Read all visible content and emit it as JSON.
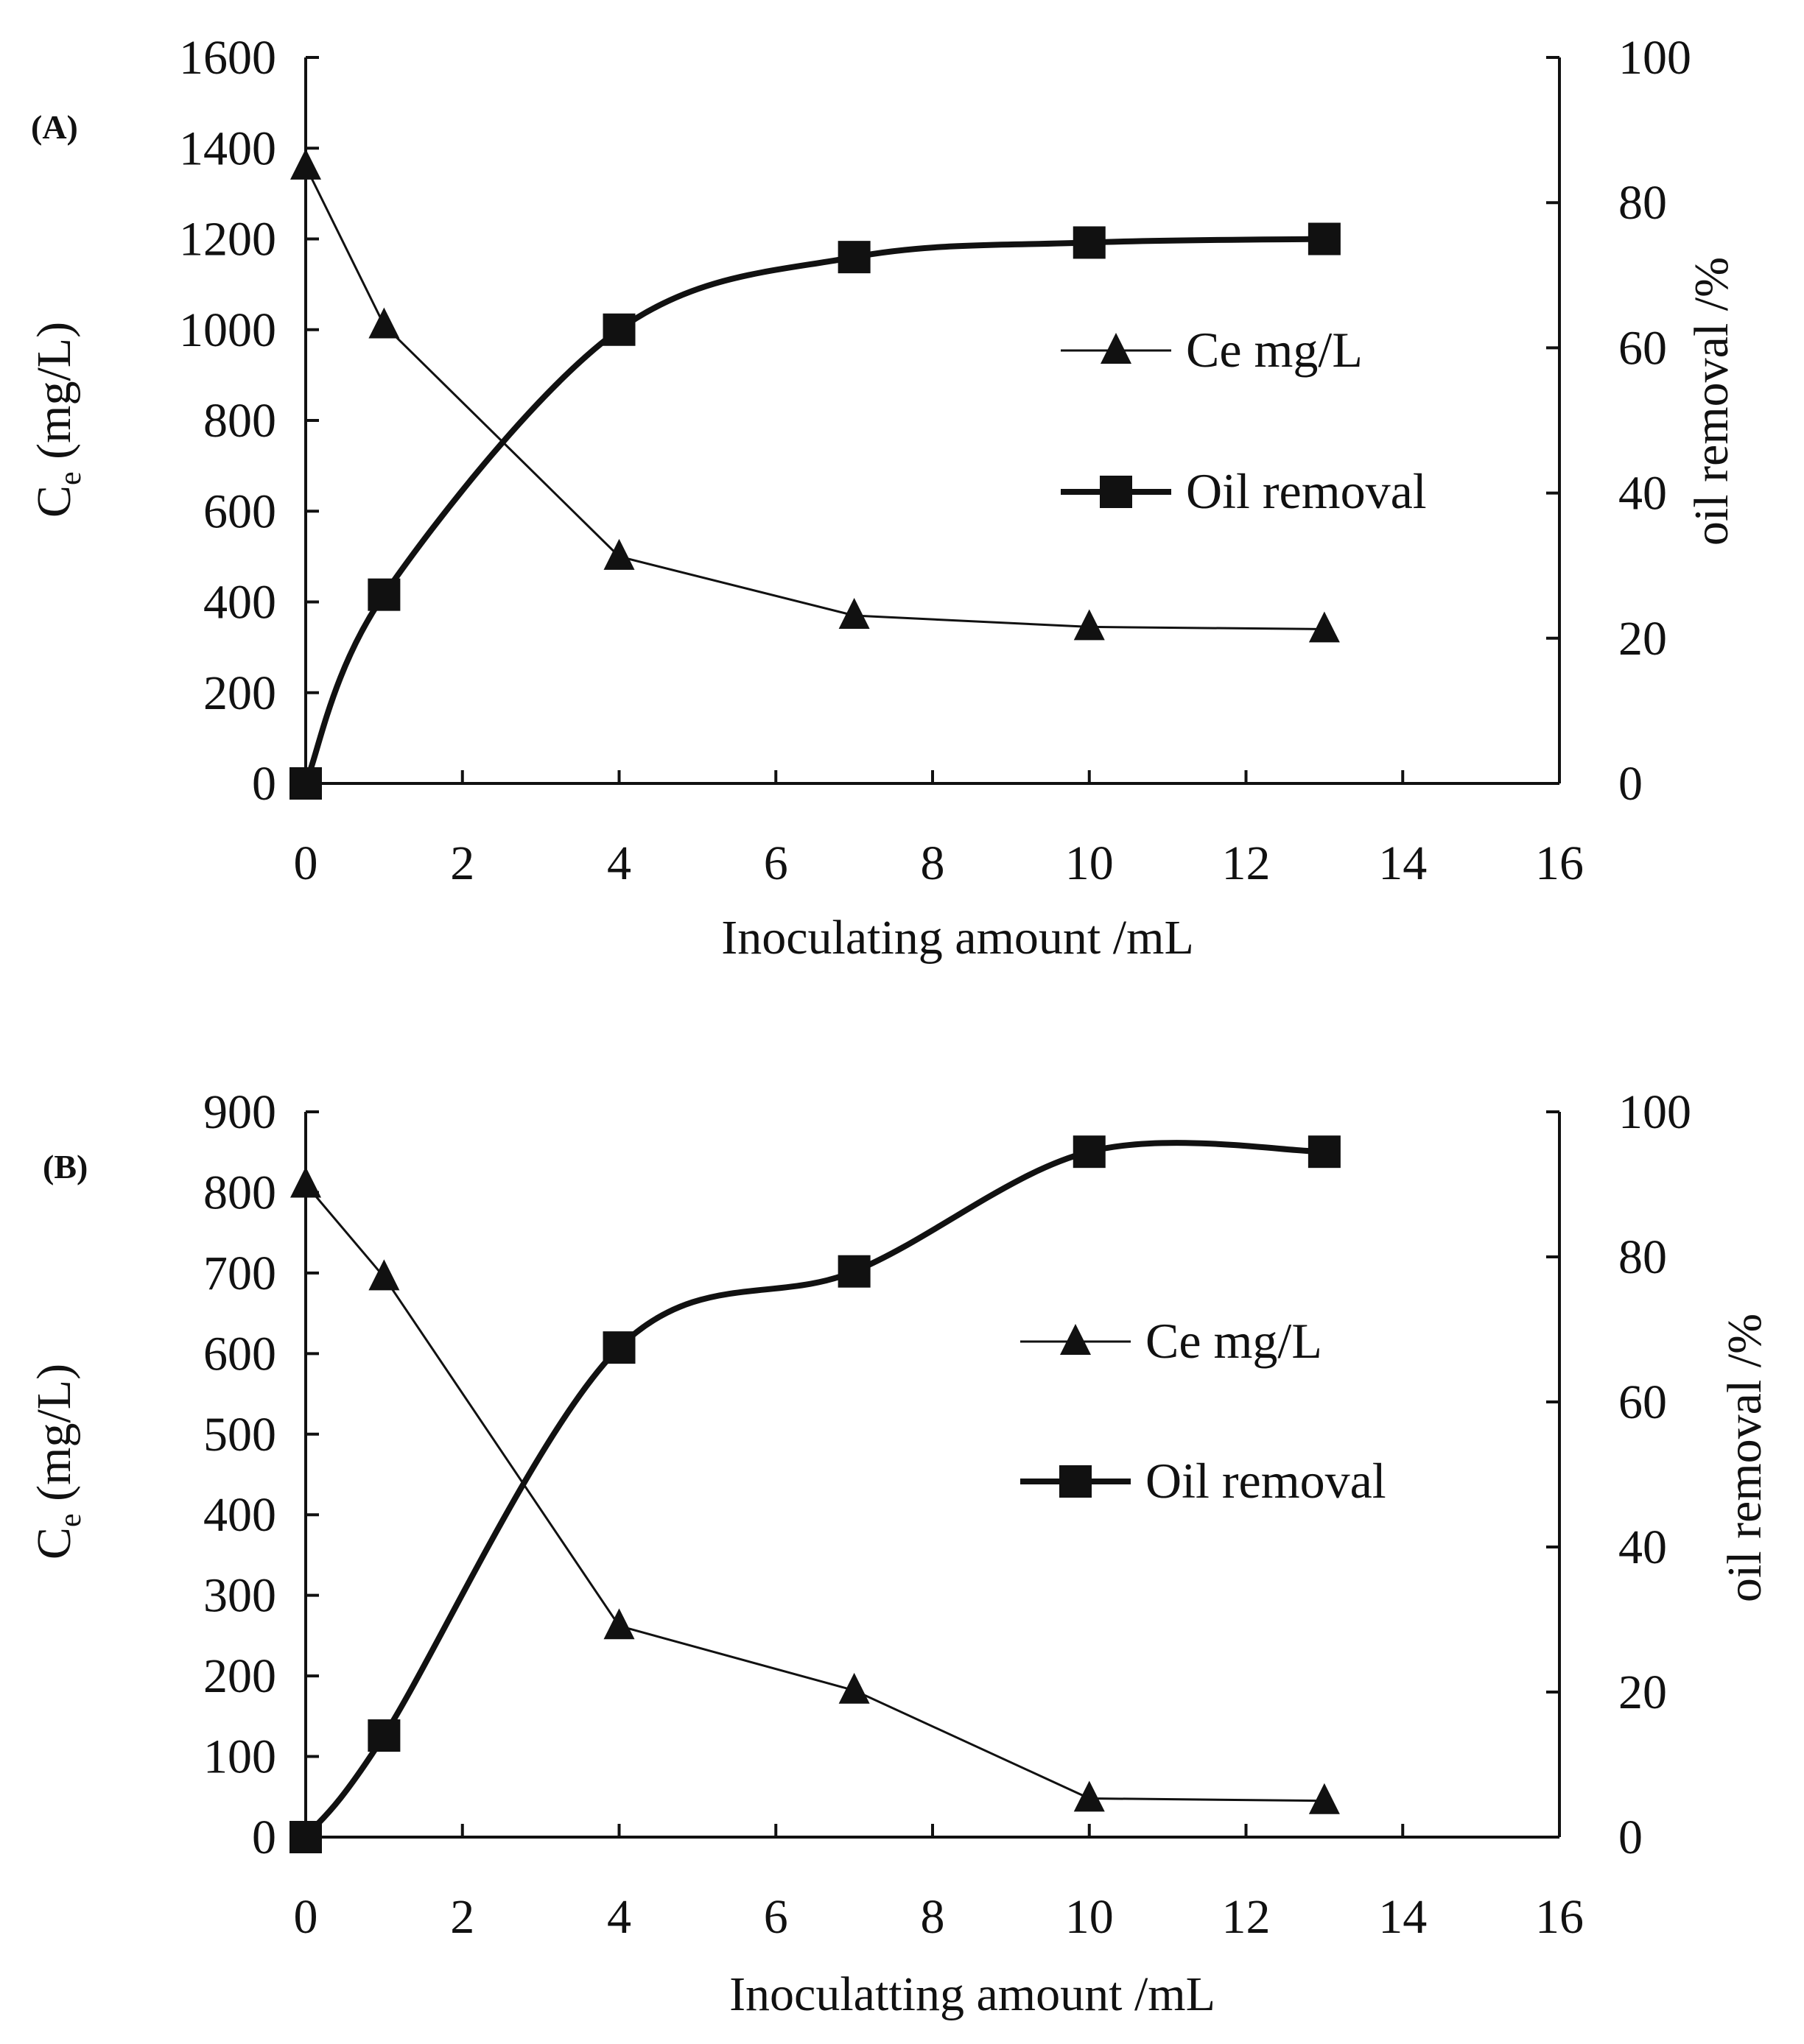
{
  "chart_data": [
    {
      "type": "line",
      "panel_label": "(A)",
      "xlabel": "Inoculating amount   /mL",
      "ylabel": "C",
      "ylabel_sub": "e",
      "ylabel_unit": "  (mg/L)",
      "y2label": "oil removal /%",
      "xlim": [
        0,
        16
      ],
      "ylim": [
        0,
        1600
      ],
      "y2lim": [
        0,
        100
      ],
      "x_ticks": [
        "0",
        "2",
        "4",
        "6",
        "8",
        "10",
        "12",
        "14",
        "16"
      ],
      "y_ticks": [
        "0",
        "200",
        "400",
        "600",
        "800",
        "1000",
        "1200",
        "1400",
        "1600"
      ],
      "y2_ticks": [
        "0",
        "20",
        "40",
        "60",
        "80",
        "100"
      ],
      "legend_position": "center-right",
      "series": [
        {
          "name": "Ce mg/L",
          "axis": "left",
          "marker": "triangle",
          "x": [
            0,
            1,
            4,
            7,
            10,
            13
          ],
          "values": [
            1360,
            1010,
            500,
            370,
            345,
            340
          ]
        },
        {
          "name": "Oil removal",
          "axis": "right",
          "marker": "square",
          "smooth": true,
          "x": [
            0,
            1,
            4,
            7,
            10,
            13
          ],
          "values": [
            0,
            26,
            62.5,
            72.5,
            74.5,
            75
          ]
        }
      ]
    },
    {
      "type": "line",
      "panel_label": "(B)",
      "xlabel": "Inoculatting amount  /mL",
      "ylabel": "C",
      "ylabel_sub": "e",
      "ylabel_unit": "  (mg/L)",
      "y2label": "oil removal /%",
      "xlim": [
        0,
        16
      ],
      "ylim": [
        0,
        900
      ],
      "y2lim": [
        0,
        100
      ],
      "x_ticks": [
        "0",
        "2",
        "4",
        "6",
        "8",
        "10",
        "12",
        "14",
        "16"
      ],
      "y_ticks": [
        "0",
        "100",
        "200",
        "300",
        "400",
        "500",
        "600",
        "700",
        "800",
        "900"
      ],
      "y2_ticks": [
        "0",
        "20",
        "40",
        "60",
        "80",
        "100"
      ],
      "legend_position": "center-right",
      "series": [
        {
          "name": "Ce mg/L",
          "axis": "left",
          "marker": "triangle",
          "x": [
            0,
            1,
            4,
            7,
            10,
            13
          ],
          "values": [
            810,
            695,
            262,
            182,
            48,
            45
          ]
        },
        {
          "name": "Oil removal",
          "axis": "right",
          "marker": "square",
          "smooth": true,
          "x": [
            0,
            1,
            4,
            7,
            10,
            13
          ],
          "values": [
            0,
            14,
            67.5,
            78,
            94.5,
            94.5
          ]
        }
      ]
    }
  ]
}
